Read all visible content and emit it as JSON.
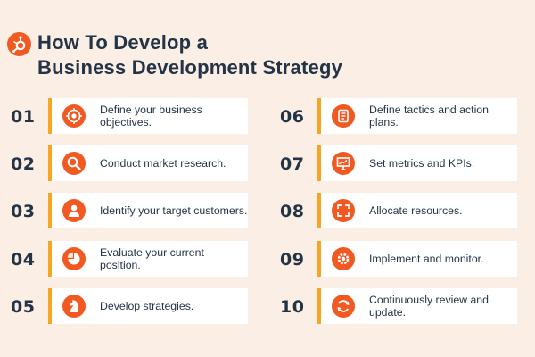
{
  "title_lines": [
    "How To Develop a",
    "Business Development Strategy"
  ],
  "colors": {
    "background": "#fbeee4",
    "accent": "#f05a22",
    "card_border": "#f6a623",
    "text": "#243447"
  },
  "steps": [
    {
      "number": "01",
      "label": "Define your business objectives.",
      "icon": "target-icon"
    },
    {
      "number": "02",
      "label": "Conduct market research.",
      "icon": "search-icon"
    },
    {
      "number": "03",
      "label": "Identify your target customers.",
      "icon": "person-icon"
    },
    {
      "number": "04",
      "label": "Evaluate your current position.",
      "icon": "pie-chart-icon"
    },
    {
      "number": "05",
      "label": "Develop strategies.",
      "icon": "chess-knight-icon"
    },
    {
      "number": "06",
      "label": "Define tactics and action plans.",
      "icon": "checklist-icon"
    },
    {
      "number": "07",
      "label": "Set metrics and KPIs.",
      "icon": "presentation-chart-icon"
    },
    {
      "number": "08",
      "label": "Allocate resources.",
      "icon": "expand-arrows-icon"
    },
    {
      "number": "09",
      "label": "Implement and monitor.",
      "icon": "gear-icon"
    },
    {
      "number": "10",
      "label": "Continuously review and update.",
      "icon": "refresh-icon"
    }
  ]
}
